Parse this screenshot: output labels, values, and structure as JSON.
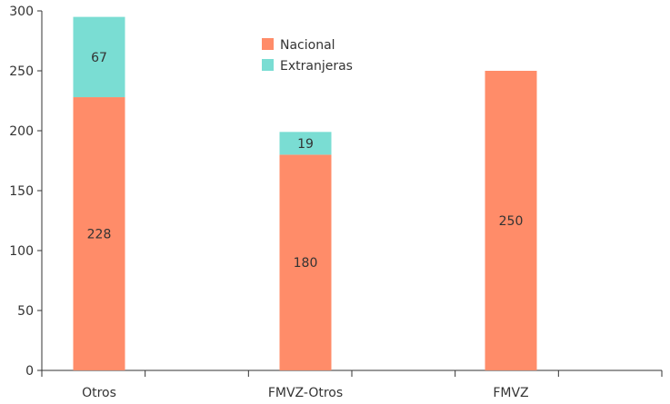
{
  "chart_data": {
    "type": "bar",
    "stacked": true,
    "categories": [
      "Otros",
      "FMVZ-Otros",
      "FMVZ"
    ],
    "series": [
      {
        "name": "Nacional",
        "values": [
          228,
          180,
          250
        ],
        "color": "#FF8C69"
      },
      {
        "name": "Extranjeras",
        "values": [
          67,
          19,
          0
        ],
        "color": "#7ADDD3"
      }
    ],
    "data_labels": [
      [
        "228",
        "180",
        "250"
      ],
      [
        "67",
        "19",
        ""
      ]
    ],
    "ylim": [
      0,
      300
    ],
    "yticks": [
      0,
      50,
      100,
      150,
      200,
      250,
      300
    ],
    "grid": false,
    "legend_position": "top-center",
    "title": "",
    "xlabel": "",
    "ylabel": ""
  }
}
